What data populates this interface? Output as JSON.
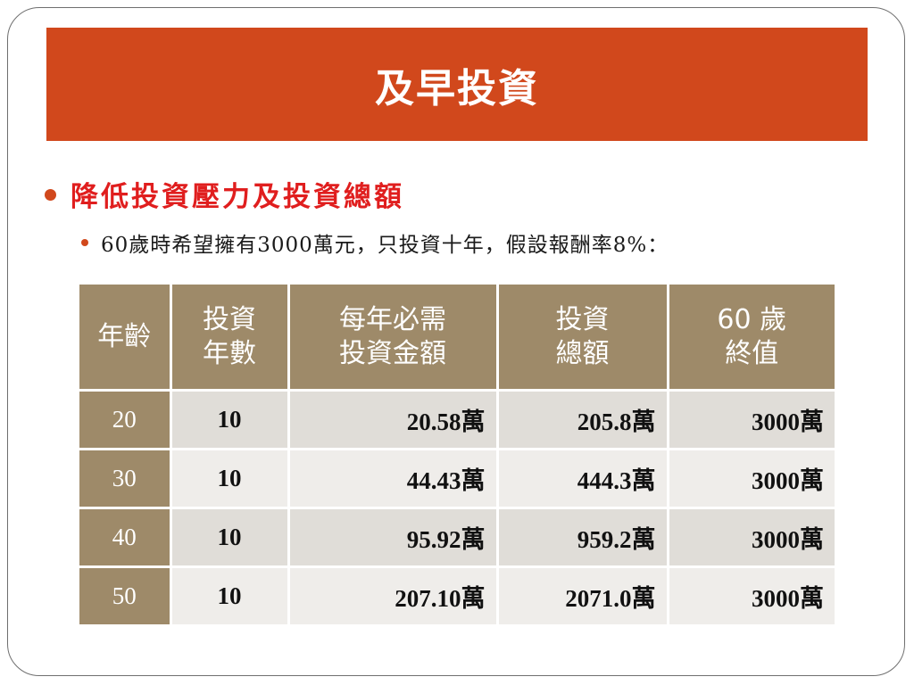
{
  "slide": {
    "title": "及早投資",
    "bullet_main": "降低投資壓力及投資總額",
    "bullet_sub": "60歲時希望擁有3000萬元，只投資十年，假設報酬率8%："
  },
  "colors": {
    "title_bar": "#d1481c",
    "bullet_text": "#e01e1e",
    "table_header": "#9e8a69"
  },
  "table": {
    "headers": [
      {
        "line1": "年齡",
        "line2": ""
      },
      {
        "line1": "投資",
        "line2": "年數"
      },
      {
        "line1": "每年必需",
        "line2": "投資金額"
      },
      {
        "line1": "投資",
        "line2": "總額"
      },
      {
        "line1": "60 歲",
        "line2": "終值"
      }
    ],
    "unit": "萬",
    "rows": [
      {
        "age": "20",
        "years": "10",
        "annual": "20.58",
        "total": "205.8",
        "final": "3000"
      },
      {
        "age": "30",
        "years": "10",
        "annual": "44.43",
        "total": "444.3",
        "final": "3000"
      },
      {
        "age": "40",
        "years": "10",
        "annual": "95.92",
        "total": "959.2",
        "final": "3000"
      },
      {
        "age": "50",
        "years": "10",
        "annual": "207.10",
        "total": "2071.0",
        "final": "3000"
      }
    ]
  }
}
